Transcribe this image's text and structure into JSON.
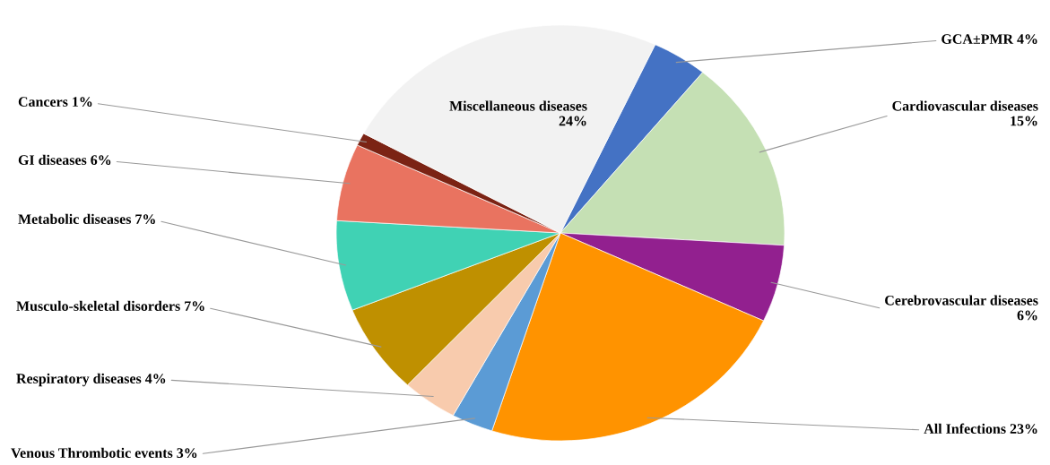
{
  "chart_data": {
    "type": "pie",
    "categories": [
      "GCA±PMR",
      "Cardiovascular diseases",
      "Cerebrovascular diseases",
      "All Infections",
      "Venous Thrombotic events",
      "Respiratory diseases",
      "Musculo-skeletal disorders",
      "Metabolic diseases",
      "GI diseases",
      "Cancers",
      "Miscellaneous diseases"
    ],
    "values": [
      4,
      15,
      6,
      23,
      3,
      4,
      7,
      7,
      6,
      1,
      24
    ],
    "value_labels": [
      "4%",
      "15%",
      "6%",
      "23%",
      "3%",
      "4%",
      "7%",
      "7%",
      "6%",
      "1%",
      "24%"
    ],
    "colors": [
      "#4472c4",
      "#c5e0b4",
      "#92208f",
      "#ff9300",
      "#5b9bd5",
      "#f8cbad",
      "#bf9000",
      "#40d2b4",
      "#e97360",
      "#7b2314",
      "#f2f2f2"
    ]
  }
}
